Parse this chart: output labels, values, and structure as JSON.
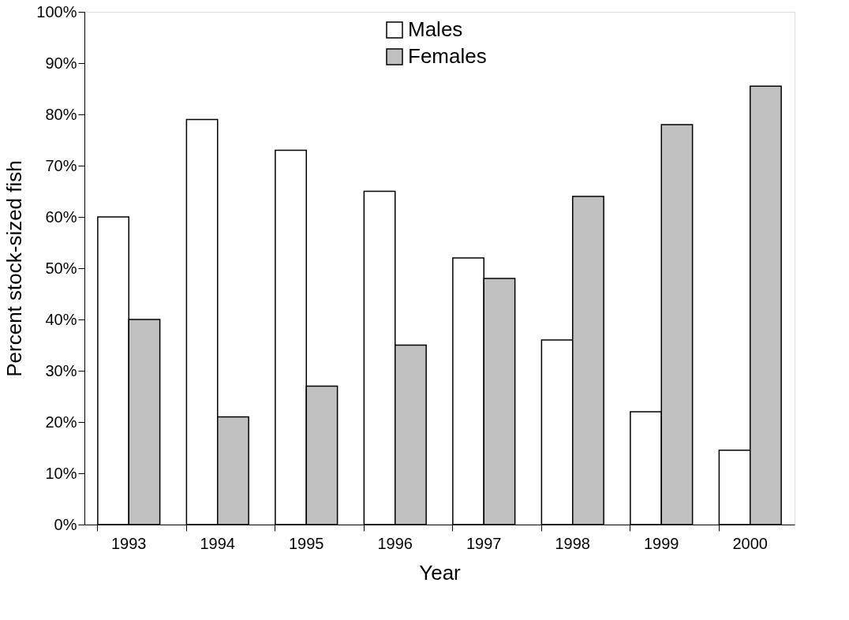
{
  "chart_data": {
    "type": "bar",
    "xlabel": "Year",
    "ylabel": "Percent stock-sized fish",
    "categories": [
      "1993",
      "1994",
      "1995",
      "1996",
      "1997",
      "1998",
      "1999",
      "2000"
    ],
    "series": [
      {
        "name": "Males",
        "color": "#ffffff",
        "values": [
          60,
          79,
          73,
          65,
          52,
          36,
          22,
          14.5
        ]
      },
      {
        "name": "Females",
        "color": "#c0c0c0",
        "values": [
          40,
          21,
          27,
          35,
          48,
          64,
          78,
          85.5
        ]
      }
    ],
    "ylim": [
      0,
      100
    ],
    "yticks": [
      {
        "value": 0,
        "label": "0%"
      },
      {
        "value": 10,
        "label": "10%"
      },
      {
        "value": 20,
        "label": "20%"
      },
      {
        "value": 30,
        "label": "30%"
      },
      {
        "value": 40,
        "label": "40%"
      },
      {
        "value": 50,
        "label": "50%"
      },
      {
        "value": 60,
        "label": "60%"
      },
      {
        "value": 70,
        "label": "70%"
      },
      {
        "value": 80,
        "label": "80%"
      },
      {
        "value": 90,
        "label": "90%"
      },
      {
        "value": 100,
        "label": "100%"
      }
    ],
    "grid": false,
    "legend": "top"
  }
}
